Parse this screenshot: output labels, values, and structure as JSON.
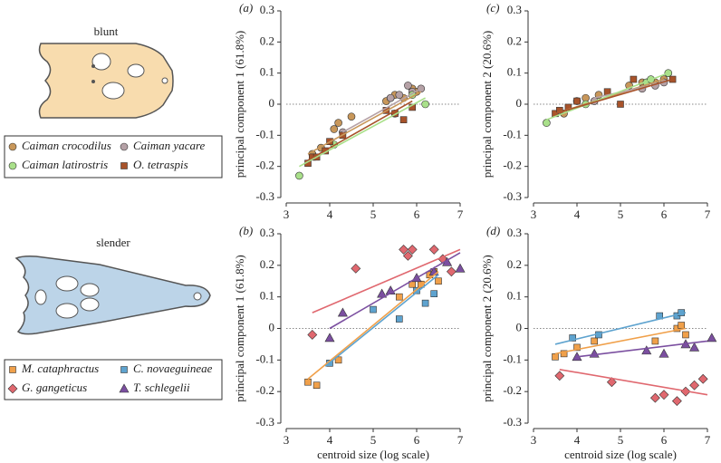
{
  "diagram": {
    "top_label": "blunt",
    "bottom_label": "slender"
  },
  "chart_data": [
    {
      "type": "scatter",
      "panel": "(a)",
      "ylabel": "principal component 1 (61.8%)",
      "xlim": [
        3,
        7
      ],
      "xticks": [
        3,
        4,
        5,
        6,
        7
      ],
      "ylim": [
        -0.3,
        0.3
      ],
      "yticks": [
        0.3,
        0.2,
        0.1,
        0,
        -0.1,
        -0.2,
        -0.3
      ],
      "reference_line": 0,
      "series": [
        {
          "name": "Caiman crocodilus",
          "color": "#c8975a",
          "marker": "circle",
          "x": [
            3.6,
            3.8,
            4.1,
            4.2,
            4.5,
            5.3,
            5.4,
            5.5,
            5.7,
            5.9,
            6.0
          ],
          "values": [
            -0.16,
            -0.14,
            -0.08,
            -0.06,
            -0.04,
            0.01,
            0.02,
            0.03,
            0.02,
            0.05,
            0.04
          ],
          "line_x": [
            3.5,
            6.1
          ],
          "line_values": [
            -0.16,
            0.04
          ]
        },
        {
          "name": "Caiman yacare",
          "color": "#b5a1a6",
          "marker": "circle",
          "x": [
            4.3,
            5.4,
            5.6,
            5.8,
            5.9,
            6.1
          ],
          "values": [
            -0.09,
            0.02,
            0.03,
            0.06,
            0.04,
            0.05
          ],
          "line_x": [
            4.3,
            6.1
          ],
          "line_values": [
            -0.09,
            0.05
          ]
        },
        {
          "name": "Caiman latirostris",
          "color": "#a9e08a",
          "marker": "circle",
          "x": [
            3.3,
            4.1,
            5.5,
            5.9,
            6.2
          ],
          "values": [
            -0.23,
            -0.13,
            -0.03,
            0.03,
            0.0
          ],
          "line_x": [
            3.3,
            6.2
          ],
          "line_values": [
            -0.2,
            0.02
          ]
        },
        {
          "name": "O. tetraspis",
          "color": "#a8532a",
          "marker": "square",
          "x": [
            3.5,
            3.6,
            3.7,
            3.9,
            4.0,
            4.3,
            5.3,
            5.5,
            5.7,
            5.9
          ],
          "values": [
            -0.19,
            -0.17,
            -0.17,
            -0.15,
            -0.12,
            -0.1,
            -0.02,
            -0.03,
            -0.05,
            -0.01
          ],
          "line_x": [
            3.5,
            5.9
          ],
          "line_values": [
            -0.18,
            0.01
          ]
        }
      ]
    },
    {
      "type": "scatter",
      "panel": "(b)",
      "ylabel": "principal component 1 (61.8%)",
      "xlabel": "centroid size (log scale)",
      "xlim": [
        3,
        7
      ],
      "xticks": [
        3,
        4,
        5,
        6,
        7
      ],
      "ylim": [
        -0.3,
        0.3
      ],
      "yticks": [
        0.3,
        0.2,
        0.1,
        0,
        -0.1,
        -0.2,
        -0.3
      ],
      "reference_line": 0,
      "series": [
        {
          "name": "M. cataphractus",
          "color": "#f0a04a",
          "marker": "square",
          "x": [
            3.5,
            3.7,
            4.2,
            5.6,
            5.9,
            6.1,
            6.3,
            6.4,
            6.5
          ],
          "values": [
            -0.17,
            -0.18,
            -0.1,
            0.1,
            0.14,
            0.14,
            0.17,
            0.18,
            0.15
          ],
          "line_x": [
            3.5,
            6.5
          ],
          "line_values": [
            -0.16,
            0.18
          ]
        },
        {
          "name": "C. novaeguineae",
          "color": "#5ea3cf",
          "marker": "square",
          "x": [
            4.0,
            5.0,
            5.6,
            6.0,
            6.2,
            6.4
          ],
          "values": [
            -0.11,
            0.06,
            0.03,
            0.12,
            0.08,
            0.11
          ],
          "line_x": [
            3.9,
            6.5
          ],
          "line_values": [
            -0.12,
            0.17
          ]
        },
        {
          "name": "G. gangeticus",
          "color": "#e0686f",
          "marker": "diamond",
          "x": [
            3.6,
            4.6,
            5.7,
            5.8,
            5.9,
            6.4,
            6.6,
            6.8
          ],
          "values": [
            -0.02,
            0.19,
            0.25,
            0.23,
            0.25,
            0.25,
            0.22,
            0.18
          ],
          "line_x": [
            3.6,
            7.0
          ],
          "line_values": [
            0.05,
            0.25
          ]
        },
        {
          "name": "T. schlegelii",
          "color": "#7b4fa0",
          "marker": "triangle",
          "x": [
            4.0,
            4.3,
            5.2,
            5.4,
            6.0,
            6.4,
            6.7,
            7.0
          ],
          "values": [
            -0.03,
            0.05,
            0.11,
            0.12,
            0.16,
            0.18,
            0.21,
            0.19
          ],
          "line_x": [
            4.0,
            7.0
          ],
          "line_values": [
            0.0,
            0.24
          ]
        }
      ]
    },
    {
      "type": "scatter",
      "panel": "(c)",
      "ylabel": "principal component 2 (20.6%)",
      "xlim": [
        3,
        7
      ],
      "xticks": [
        3,
        4,
        5,
        6,
        7
      ],
      "ylim": [
        -0.3,
        0.3
      ],
      "yticks": [
        0.3,
        0.2,
        0.1,
        0,
        -0.1,
        -0.2,
        -0.3
      ],
      "reference_line": 0,
      "series": [
        {
          "color": "#c8975a",
          "marker": "circle",
          "x": [
            3.7,
            4.0,
            4.2,
            4.5,
            5.2,
            5.5,
            5.8,
            6.0
          ],
          "values": [
            -0.03,
            0.01,
            0.02,
            0.03,
            0.06,
            0.07,
            0.07,
            0.08
          ],
          "line_x": [
            3.5,
            6.0
          ],
          "line_values": [
            -0.03,
            0.08
          ]
        },
        {
          "color": "#b5a1a6",
          "marker": "circle",
          "x": [
            4.4,
            5.5,
            5.8,
            6.0
          ],
          "values": [
            0.01,
            0.05,
            0.06,
            0.07
          ],
          "line_x": [
            4.4,
            6.0
          ],
          "line_values": [
            0.02,
            0.07
          ]
        },
        {
          "color": "#a9e08a",
          "marker": "circle",
          "x": [
            3.3,
            4.2,
            5.6,
            5.7,
            6.1
          ],
          "values": [
            -0.06,
            0.0,
            0.07,
            0.08,
            0.1
          ],
          "line_x": [
            3.3,
            6.1
          ],
          "line_values": [
            -0.05,
            0.1
          ]
        },
        {
          "color": "#a8532a",
          "marker": "square",
          "x": [
            3.5,
            3.6,
            3.8,
            4.0,
            4.7,
            5.0,
            5.3,
            6.2
          ],
          "values": [
            -0.03,
            -0.02,
            -0.01,
            0.01,
            0.04,
            0.0,
            0.08,
            0.08
          ],
          "line_x": [
            3.5,
            6.2
          ],
          "line_values": [
            -0.03,
            0.08
          ]
        }
      ]
    },
    {
      "type": "scatter",
      "panel": "(d)",
      "ylabel": "principal component 2 (20.6%)",
      "xlabel": "centroid size (log scale)",
      "xlim": [
        3,
        7
      ],
      "xticks": [
        3,
        4,
        5,
        6,
        7
      ],
      "ylim": [
        -0.3,
        0.3
      ],
      "yticks": [
        0.3,
        0.2,
        0.1,
        0,
        -0.1,
        -0.2,
        -0.3
      ],
      "reference_line": 0,
      "series": [
        {
          "color": "#f0a04a",
          "marker": "square",
          "x": [
            3.5,
            3.7,
            4.0,
            4.4,
            5.8,
            6.3,
            6.4,
            6.5
          ],
          "values": [
            -0.09,
            -0.08,
            -0.06,
            -0.04,
            -0.04,
            0.0,
            0.01,
            -0.02
          ],
          "line_x": [
            3.5,
            6.5
          ],
          "line_values": [
            -0.08,
            0.0
          ]
        },
        {
          "color": "#5ea3cf",
          "marker": "square",
          "x": [
            3.9,
            4.5,
            5.9,
            6.3,
            6.4
          ],
          "values": [
            -0.03,
            -0.02,
            0.04,
            0.04,
            0.05
          ],
          "line_x": [
            3.5,
            6.5
          ],
          "line_values": [
            -0.05,
            0.05
          ]
        },
        {
          "color": "#e0686f",
          "marker": "diamond",
          "x": [
            3.6,
            4.8,
            5.8,
            6.0,
            6.3,
            6.5,
            6.7,
            6.9
          ],
          "values": [
            -0.15,
            -0.17,
            -0.22,
            -0.21,
            -0.23,
            -0.2,
            -0.18,
            -0.16
          ],
          "line_x": [
            3.6,
            7.0
          ],
          "line_values": [
            -0.13,
            -0.21
          ]
        },
        {
          "color": "#7b4fa0",
          "marker": "triangle",
          "x": [
            4.0,
            4.4,
            5.6,
            6.0,
            6.5,
            6.7,
            7.1
          ],
          "values": [
            -0.09,
            -0.08,
            -0.07,
            -0.08,
            -0.05,
            -0.06,
            -0.03
          ],
          "line_x": [
            4.0,
            7.0
          ],
          "line_values": [
            -0.09,
            -0.04
          ]
        }
      ]
    }
  ]
}
